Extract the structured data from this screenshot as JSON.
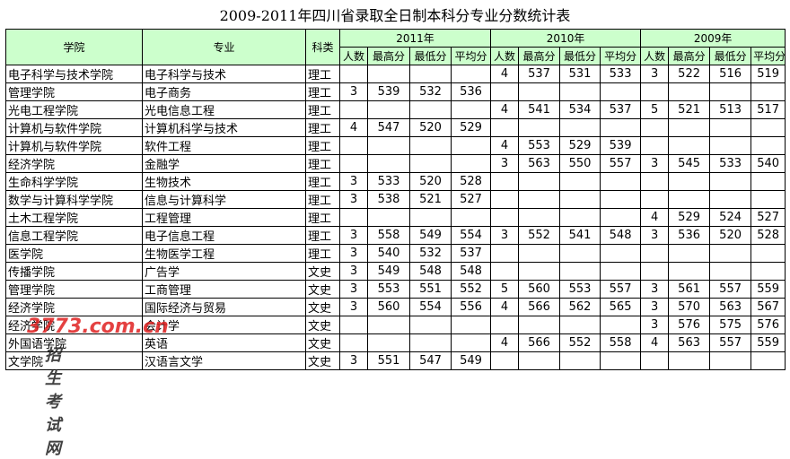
{
  "title": "2009-2011年四川省录取全日制本科分专业分数统计表",
  "header": {
    "college": "学院",
    "major": "专业",
    "category": "科类",
    "years": [
      "2011年",
      "2010年",
      "2009年"
    ],
    "subheaders": [
      "人数",
      "最高分",
      "最低分",
      "平均分"
    ]
  },
  "rows": [
    {
      "college": "电子科学与技术学院",
      "major": "电子科学与技术",
      "category": "理工",
      "scores": [
        null,
        null,
        null,
        null,
        4,
        537,
        531,
        533,
        3,
        522,
        516,
        519
      ]
    },
    {
      "college": "管理学院",
      "major": "电子商务",
      "category": "理工",
      "scores": [
        3,
        539,
        532,
        536,
        null,
        null,
        null,
        null,
        null,
        null,
        null,
        null
      ]
    },
    {
      "college": "光电工程学院",
      "major": "光电信息工程",
      "category": "理工",
      "scores": [
        null,
        null,
        null,
        null,
        4,
        541,
        534,
        537,
        5,
        521,
        513,
        517
      ]
    },
    {
      "college": "计算机与软件学院",
      "major": "计算机科学与技术",
      "category": "理工",
      "scores": [
        4,
        547,
        520,
        529,
        null,
        null,
        null,
        null,
        null,
        null,
        null,
        null
      ]
    },
    {
      "college": "计算机与软件学院",
      "major": "软件工程",
      "category": "理工",
      "scores": [
        null,
        null,
        null,
        null,
        4,
        553,
        529,
        539,
        null,
        null,
        null,
        null
      ]
    },
    {
      "college": "经济学院",
      "major": "金融学",
      "category": "理工",
      "scores": [
        null,
        null,
        null,
        null,
        3,
        563,
        550,
        557,
        3,
        545,
        533,
        540
      ]
    },
    {
      "college": "生命科学学院",
      "major": "生物技术",
      "category": "理工",
      "scores": [
        3,
        533,
        520,
        528,
        null,
        null,
        null,
        null,
        null,
        null,
        null,
        null
      ]
    },
    {
      "college": "数学与计算科学学院",
      "major": "信息与计算科学",
      "category": "理工",
      "scores": [
        3,
        538,
        521,
        527,
        null,
        null,
        null,
        null,
        null,
        null,
        null,
        null
      ]
    },
    {
      "college": "土木工程学院",
      "major": "工程管理",
      "category": "理工",
      "scores": [
        null,
        null,
        null,
        null,
        null,
        null,
        null,
        null,
        4,
        529,
        524,
        527
      ]
    },
    {
      "college": "信息工程学院",
      "major": "电子信息工程",
      "category": "理工",
      "scores": [
        3,
        558,
        549,
        554,
        3,
        552,
        541,
        548,
        3,
        536,
        520,
        528
      ]
    },
    {
      "college": "医学院",
      "major": "生物医学工程",
      "category": "理工",
      "scores": [
        3,
        540,
        532,
        537,
        null,
        null,
        null,
        null,
        null,
        null,
        null,
        null
      ]
    },
    {
      "college": "传播学院",
      "major": "广告学",
      "category": "文史",
      "scores": [
        3,
        549,
        548,
        548,
        null,
        null,
        null,
        null,
        null,
        null,
        null,
        null
      ]
    },
    {
      "college": "管理学院",
      "major": "工商管理",
      "category": "文史",
      "scores": [
        3,
        553,
        551,
        552,
        5,
        560,
        553,
        557,
        3,
        561,
        557,
        559
      ]
    },
    {
      "college": "经济学院",
      "major": "国际经济与贸易",
      "category": "文史",
      "scores": [
        3,
        560,
        554,
        556,
        4,
        566,
        562,
        565,
        3,
        570,
        563,
        567
      ]
    },
    {
      "college": "经济学院",
      "major": "会计学",
      "category": "文史",
      "scores": [
        null,
        null,
        null,
        null,
        null,
        null,
        null,
        null,
        3,
        576,
        575,
        576
      ]
    },
    {
      "college": "外国语学院",
      "major": "英语",
      "category": "文史",
      "scores": [
        null,
        null,
        null,
        null,
        4,
        566,
        552,
        558,
        4,
        563,
        557,
        559
      ]
    },
    {
      "college": "文学院",
      "major": "汉语言文学",
      "category": "文史",
      "scores": [
        3,
        551,
        547,
        549,
        null,
        null,
        null,
        null,
        null,
        null,
        null,
        null
      ]
    }
  ],
  "watermark": {
    "logo": "3773.com.cn",
    "text": "招生考试网"
  }
}
